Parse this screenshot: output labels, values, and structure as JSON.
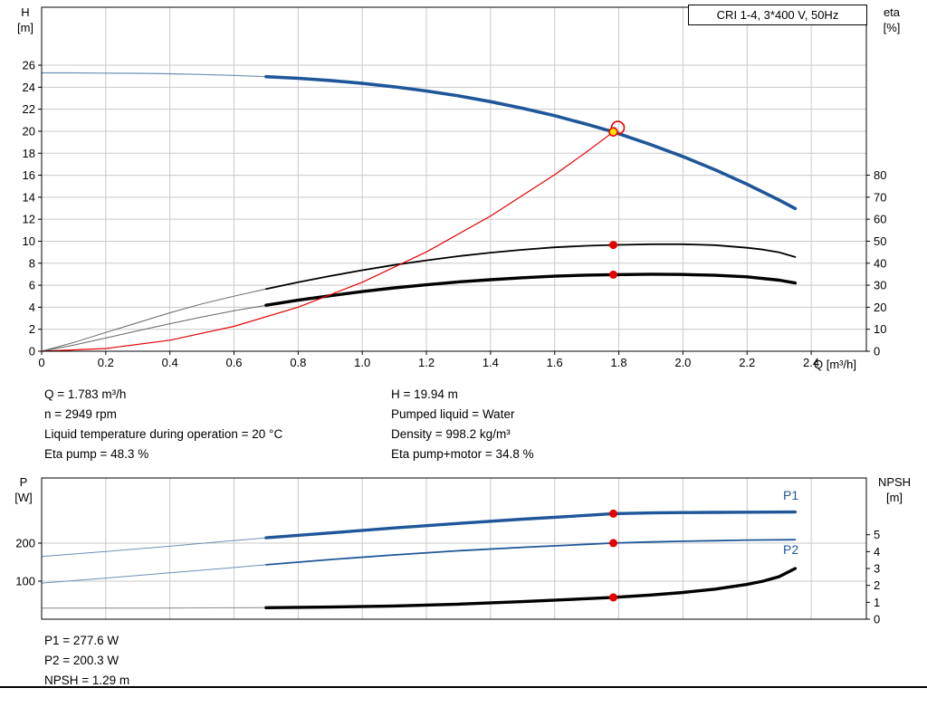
{
  "colors": {
    "curve_blue": "#1e5799",
    "thin_blue": "#6e8fb3",
    "black": "#000000",
    "thin_gray": "#666666",
    "red": "#e60000",
    "duty_yellow": "#ffe200",
    "grid": "#c9c9c9",
    "axis": "#000000"
  },
  "curve_labels": {
    "p1": "P1",
    "p2": "P2"
  },
  "info": {
    "left_lines": [
      "Q = 1.783 m³/h",
      "n = 2949 rpm",
      "Liquid temperature during operation = 20 °C",
      "Eta pump = 48.3 %"
    ],
    "right_lines": [
      "H = 19.94 m",
      "Pumped liquid = Water",
      "Density = 998.2 kg/m³",
      "Eta pump+motor = 34.8 %"
    ],
    "bottom_lines": [
      "P1 = 277.6 W",
      "P2 = 200.3 W",
      "NPSH = 1.29 m"
    ]
  },
  "chart_data": [
    {
      "type": "line",
      "title": "CRI 1-4, 3*400 V, 50Hz",
      "x_axis": {
        "label": "Q [m³/h]",
        "min": 0,
        "max": 2.572,
        "ticks": [
          0,
          0.2,
          0.4,
          0.6,
          0.8,
          1.0,
          1.2,
          1.4,
          1.6,
          1.8,
          2.0,
          2.2,
          2.4
        ],
        "tick_labels": [
          "0",
          "0.2",
          "0.4",
          "0.6",
          "0.8",
          "1.0",
          "1.2",
          "1.4",
          "1.6",
          "1.8",
          "2.0",
          "2.2",
          "2.4"
        ]
      },
      "y_left": {
        "name": "H",
        "unit": "[m]",
        "min": 0,
        "max": 31.27,
        "ticks": [
          0,
          2,
          4,
          6,
          8,
          10,
          12,
          14,
          16,
          18,
          20,
          22,
          24,
          26
        ]
      },
      "y_right": {
        "name": "eta",
        "unit": "[%]",
        "min": 0,
        "max": 156.3,
        "ticks": [
          0,
          10,
          20,
          30,
          40,
          50,
          60,
          70,
          80
        ]
      },
      "series": [
        {
          "name": "qh-curve-thin",
          "axis": "left",
          "color": "#6e8fb3",
          "width": 1.2,
          "points": [
            [
              0,
              25.3
            ],
            [
              0.1,
              25.3
            ],
            [
              0.2,
              25.28
            ],
            [
              0.3,
              25.26
            ],
            [
              0.4,
              25.22
            ],
            [
              0.5,
              25.16
            ],
            [
              0.6,
              25.07
            ],
            [
              0.7,
              24.96
            ]
          ]
        },
        {
          "name": "qh-curve",
          "axis": "left",
          "color": "#1e5799",
          "width": 3.6,
          "points": [
            [
              0.7,
              24.96
            ],
            [
              0.8,
              24.81
            ],
            [
              0.9,
              24.61
            ],
            [
              1.0,
              24.35
            ],
            [
              1.1,
              24.04
            ],
            [
              1.2,
              23.66
            ],
            [
              1.3,
              23.21
            ],
            [
              1.4,
              22.69
            ],
            [
              1.5,
              22.09
            ],
            [
              1.6,
              21.41
            ],
            [
              1.7,
              20.63
            ],
            [
              1.783,
              19.94
            ],
            [
              1.9,
              18.78
            ],
            [
              2.0,
              17.7
            ],
            [
              2.1,
              16.5
            ],
            [
              2.2,
              15.18
            ],
            [
              2.3,
              13.74
            ],
            [
              2.35,
              12.97
            ]
          ]
        },
        {
          "name": "eta-pump-curve-thin",
          "axis": "right",
          "color": "#666666",
          "width": 1,
          "points": [
            [
              0,
              0
            ],
            [
              0.1,
              4
            ],
            [
              0.2,
              8.5
            ],
            [
              0.3,
              13
            ],
            [
              0.4,
              17.5
            ],
            [
              0.5,
              21.5
            ],
            [
              0.6,
              25
            ],
            [
              0.7,
              28.3
            ]
          ]
        },
        {
          "name": "eta-pump-curve",
          "axis": "right",
          "color": "#000000",
          "width": 1.8,
          "points": [
            [
              0.7,
              28.3
            ],
            [
              0.8,
              31.4
            ],
            [
              0.9,
              34.2
            ],
            [
              1.0,
              36.8
            ],
            [
              1.1,
              39.2
            ],
            [
              1.2,
              41.3
            ],
            [
              1.3,
              43.2
            ],
            [
              1.4,
              44.8
            ],
            [
              1.5,
              46.1
            ],
            [
              1.6,
              47.2
            ],
            [
              1.7,
              47.9
            ],
            [
              1.783,
              48.3
            ],
            [
              1.9,
              48.6
            ],
            [
              2.0,
              48.6
            ],
            [
              2.1,
              48.2
            ],
            [
              2.2,
              47.0
            ],
            [
              2.25,
              46.2
            ],
            [
              2.3,
              44.9
            ],
            [
              2.35,
              42.8
            ]
          ]
        },
        {
          "name": "eta-pump-motor-curve-thin",
          "axis": "right",
          "color": "#666666",
          "width": 1,
          "points": [
            [
              0,
              0
            ],
            [
              0.1,
              2.8
            ],
            [
              0.2,
              6
            ],
            [
              0.3,
              9.3
            ],
            [
              0.4,
              12.5
            ],
            [
              0.5,
              15.6
            ],
            [
              0.6,
              18.4
            ],
            [
              0.7,
              20.9
            ]
          ]
        },
        {
          "name": "eta-pump-motor-curve",
          "axis": "right",
          "color": "#000000",
          "width": 3.4,
          "points": [
            [
              0.7,
              20.9
            ],
            [
              0.8,
              23.2
            ],
            [
              0.9,
              25.2
            ],
            [
              1.0,
              27.1
            ],
            [
              1.1,
              28.8
            ],
            [
              1.2,
              30.2
            ],
            [
              1.3,
              31.5
            ],
            [
              1.4,
              32.5
            ],
            [
              1.5,
              33.4
            ],
            [
              1.6,
              34.1
            ],
            [
              1.7,
              34.6
            ],
            [
              1.783,
              34.8
            ],
            [
              1.9,
              35.0
            ],
            [
              2.0,
              34.9
            ],
            [
              2.1,
              34.5
            ],
            [
              2.2,
              33.8
            ],
            [
              2.3,
              32.3
            ],
            [
              2.35,
              31.0
            ]
          ]
        },
        {
          "name": "system-curve",
          "axis": "left",
          "color": "#e60000",
          "width": 1.2,
          "points": [
            [
              0,
              0
            ],
            [
              0.2,
              0.25
            ],
            [
              0.4,
              1.0
            ],
            [
              0.6,
              2.26
            ],
            [
              0.8,
              4.01
            ],
            [
              1.0,
              6.27
            ],
            [
              1.2,
              9.03
            ],
            [
              1.4,
              12.29
            ],
            [
              1.6,
              16.05
            ],
            [
              1.7,
              18.13
            ],
            [
              1.783,
              19.94
            ]
          ]
        }
      ],
      "markers": [
        {
          "name": "requested-duty-circle",
          "shape": "open-circle",
          "axis": "left",
          "x": 1.797,
          "y": 20.32,
          "r": 7,
          "stroke": "#e60000"
        },
        {
          "name": "duty-point",
          "shape": "dot",
          "axis": "left",
          "x": 1.783,
          "y": 19.94,
          "r": 4.5,
          "fill": "#ffe200",
          "stroke": "#e60000"
        },
        {
          "name": "eta-pump-duty-dot",
          "shape": "dot",
          "axis": "right",
          "x": 1.783,
          "y": 48.3,
          "r": 4.5,
          "fill": "#e60000"
        },
        {
          "name": "eta-pump-motor-duty-dot",
          "shape": "dot",
          "axis": "right",
          "x": 1.783,
          "y": 34.8,
          "r": 4.5,
          "fill": "#e60000"
        }
      ]
    },
    {
      "type": "line",
      "title": "",
      "x_axis": {
        "min": 0,
        "max": 2.572,
        "ticks": [
          0,
          0.2,
          0.4,
          0.6,
          0.8,
          1.0,
          1.2,
          1.4,
          1.6,
          1.8,
          2.0,
          2.2,
          2.4
        ]
      },
      "y_left": {
        "name": "P",
        "unit": "[W]",
        "min": 0,
        "max": 371.4,
        "ticks": [
          100,
          200
        ]
      },
      "y_right": {
        "name": "NPSH",
        "unit": "[m]",
        "min": 0,
        "max": 8.36,
        "ticks": [
          0,
          1,
          2,
          3,
          4,
          5
        ]
      },
      "series": [
        {
          "name": "p1-curve-thin",
          "axis": "left",
          "color": "#6e8fb3",
          "width": 1,
          "points": [
            [
              0,
              165
            ],
            [
              0.2,
              178
            ],
            [
              0.4,
              192
            ],
            [
              0.6,
              207
            ],
            [
              0.7,
              214
            ]
          ]
        },
        {
          "name": "p1-curve",
          "axis": "left",
          "color": "#1e5799",
          "width": 3.4,
          "points": [
            [
              0.7,
              214
            ],
            [
              0.9,
              227
            ],
            [
              1.1,
              240
            ],
            [
              1.3,
              252
            ],
            [
              1.5,
              263
            ],
            [
              1.7,
              273
            ],
            [
              1.783,
              277.6
            ],
            [
              1.9,
              279.5
            ],
            [
              2.0,
              280.5
            ],
            [
              2.1,
              281
            ],
            [
              2.2,
              281.5
            ],
            [
              2.35,
              282
            ]
          ]
        },
        {
          "name": "p2-curve-thin",
          "axis": "left",
          "color": "#6e8fb3",
          "width": 1,
          "points": [
            [
              0,
              95
            ],
            [
              0.2,
              108
            ],
            [
              0.4,
              122
            ],
            [
              0.6,
              136
            ],
            [
              0.7,
              143
            ]
          ]
        },
        {
          "name": "p2-curve",
          "axis": "left",
          "color": "#1e5799",
          "width": 1.8,
          "points": [
            [
              0.7,
              143
            ],
            [
              0.9,
              157
            ],
            [
              1.1,
              169
            ],
            [
              1.3,
              180
            ],
            [
              1.5,
              189
            ],
            [
              1.7,
              197
            ],
            [
              1.783,
              200.3
            ],
            [
              1.9,
              203
            ],
            [
              2.0,
              205
            ],
            [
              2.1,
              206.5
            ],
            [
              2.2,
              208
            ],
            [
              2.35,
              209
            ]
          ]
        },
        {
          "name": "npsh-curve-thin",
          "axis": "right",
          "color": "#888888",
          "width": 1,
          "points": [
            [
              0,
              0.66
            ],
            [
              0.35,
              0.66
            ],
            [
              0.7,
              0.68
            ]
          ]
        },
        {
          "name": "npsh-curve",
          "axis": "right",
          "color": "#000000",
          "width": 3.4,
          "points": [
            [
              0.7,
              0.68
            ],
            [
              0.9,
              0.72
            ],
            [
              1.1,
              0.78
            ],
            [
              1.3,
              0.89
            ],
            [
              1.5,
              1.04
            ],
            [
              1.65,
              1.17
            ],
            [
              1.783,
              1.29
            ],
            [
              1.9,
              1.43
            ],
            [
              2.0,
              1.58
            ],
            [
              2.1,
              1.78
            ],
            [
              2.2,
              2.06
            ],
            [
              2.25,
              2.25
            ],
            [
              2.3,
              2.52
            ],
            [
              2.35,
              3.0
            ]
          ]
        }
      ],
      "markers": [
        {
          "name": "p1-duty-dot",
          "shape": "dot",
          "axis": "left",
          "x": 1.783,
          "y": 277.6,
          "r": 4.5,
          "fill": "#e60000"
        },
        {
          "name": "p2-duty-dot",
          "shape": "dot",
          "axis": "left",
          "x": 1.783,
          "y": 200.3,
          "r": 4.5,
          "fill": "#e60000"
        },
        {
          "name": "npsh-duty-dot",
          "shape": "dot",
          "axis": "right",
          "x": 1.783,
          "y": 1.29,
          "r": 4.5,
          "fill": "#e60000"
        }
      ]
    }
  ]
}
